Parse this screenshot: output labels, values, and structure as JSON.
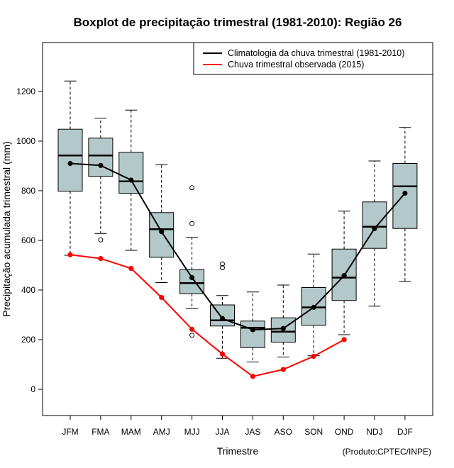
{
  "chart_data": {
    "type": "boxplot",
    "title": "Boxplot de precipitação trimestral (1981-2010): Região 26",
    "xlabel": "Trimestre",
    "ylabel": "Precipitação acumulada trimestral (mm)",
    "credit": "(Produto:CPTEC/INPE)",
    "ylim": [
      -100,
      1380
    ],
    "yticks": [
      0,
      200,
      400,
      600,
      800,
      1000,
      1200
    ],
    "categories": [
      "JFM",
      "FMA",
      "MAM",
      "AMJ",
      "MJJ",
      "JJA",
      "JAS",
      "ASO",
      "SON",
      "OND",
      "NDJ",
      "DJF"
    ],
    "boxes": [
      {
        "whisker_low": 540,
        "q1": 798,
        "median": 942,
        "q3": 1048,
        "whisker_high": 1242,
        "outliers": []
      },
      {
        "whisker_low": 628,
        "q1": 858,
        "median": 942,
        "q3": 1012,
        "whisker_high": 1092,
        "outliers": [
          602
        ]
      },
      {
        "whisker_low": 560,
        "q1": 790,
        "median": 838,
        "q3": 955,
        "whisker_high": 1125,
        "outliers": []
      },
      {
        "whisker_low": 430,
        "q1": 532,
        "median": 645,
        "q3": 712,
        "whisker_high": 905,
        "outliers": []
      },
      {
        "whisker_low": 325,
        "q1": 385,
        "median": 428,
        "q3": 482,
        "whisker_high": 612,
        "outliers": [
          218,
          668,
          812
        ]
      },
      {
        "whisker_low": 125,
        "q1": 255,
        "median": 278,
        "q3": 340,
        "whisker_high": 378,
        "outliers": [
          490,
          505
        ]
      },
      {
        "whisker_low": 110,
        "q1": 168,
        "median": 248,
        "q3": 275,
        "whisker_high": 392,
        "outliers": []
      },
      {
        "whisker_low": 130,
        "q1": 190,
        "median": 232,
        "q3": 288,
        "whisker_high": 420,
        "outliers": []
      },
      {
        "whisker_low": 135,
        "q1": 258,
        "median": 330,
        "q3": 410,
        "whisker_high": 545,
        "outliers": []
      },
      {
        "whisker_low": 220,
        "q1": 358,
        "median": 450,
        "q3": 565,
        "whisker_high": 718,
        "outliers": []
      },
      {
        "whisker_low": 335,
        "q1": 568,
        "median": 655,
        "q3": 755,
        "whisker_high": 920,
        "outliers": []
      },
      {
        "whisker_low": 435,
        "q1": 648,
        "median": 818,
        "q3": 910,
        "whisker_high": 1055,
        "outliers": []
      }
    ],
    "series": [
      {
        "name": "Climatologia da chuva trimestral (1981-2010)",
        "color": "#000000",
        "values": [
          910,
          902,
          843,
          635,
          450,
          285,
          240,
          245,
          330,
          458,
          648,
          790
        ]
      },
      {
        "name": "Chuva trimestral observada (2015)",
        "color": "#ff0000",
        "values": [
          542,
          527,
          487,
          370,
          242,
          142,
          52,
          80,
          133,
          200,
          null,
          null
        ]
      }
    ],
    "box_fill": "#b3c9c9",
    "legend_position": "top-right"
  }
}
